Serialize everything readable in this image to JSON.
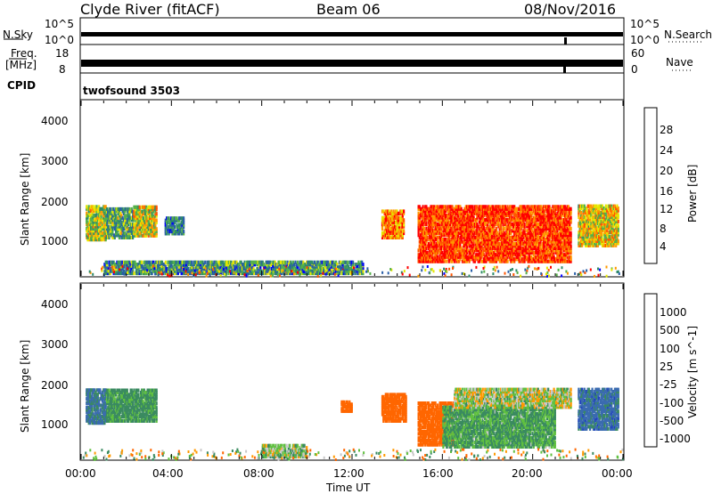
{
  "header": {
    "station": "Clyde River (fitACF)",
    "beam": "Beam 06",
    "date": "08/Nov/2016"
  },
  "status_panel": {
    "nsky_label": "N.Sky",
    "nsky_ticks": [
      "10^5",
      "10^0"
    ],
    "nsearch_label": "N.Search",
    "nsearch_ticks": [
      "10^5",
      "10^0"
    ],
    "freq_label_1": "Freq.",
    "freq_label_2": "[MHz]",
    "freq_ticks": [
      "18",
      "8"
    ],
    "nave_label": "Nave",
    "nave_ticks": [
      "60",
      "0"
    ],
    "cpid_label": "CPID",
    "cpid_value": "twofsound 3503"
  },
  "colors": {
    "power_scale": [
      "#0000ff",
      "#2a5fa8",
      "#2e8a6a",
      "#55b04a",
      "#e6e600",
      "#ff9900",
      "#ff5500",
      "#ff0000"
    ],
    "velocity_scale": [
      "#2040c0",
      "#3a6bb0",
      "#3a8a60",
      "#60c040",
      "#c8c8c8",
      "#ff9900",
      "#ff6600",
      "#ff3300",
      "#ff0000"
    ]
  },
  "chart_data": [
    {
      "type": "heatmap",
      "name": "power",
      "ylabel": "Slant Range [km]",
      "ylim": [
        180,
        4600
      ],
      "y_ticks": [
        "1000",
        "2000",
        "3000",
        "4000"
      ],
      "xlim_hours": [
        0,
        24
      ],
      "colorbar_label": "Power [dB]",
      "colorbar_ticks": [
        "4",
        "8",
        "12",
        "16",
        "20",
        "24",
        "28"
      ],
      "colorbar_range": [
        0,
        30
      ],
      "regions": [
        {
          "t0": 0.2,
          "t1": 1.1,
          "r0": 1050,
          "r1": 1900,
          "power": 16
        },
        {
          "t0": 1.1,
          "t1": 2.3,
          "r0": 1100,
          "r1": 1850,
          "power": 12
        },
        {
          "t0": 2.3,
          "t1": 3.3,
          "r0": 1150,
          "r1": 1900,
          "power": 17
        },
        {
          "t0": 3.7,
          "t1": 4.5,
          "r0": 1200,
          "r1": 1600,
          "power": 8
        },
        {
          "t0": 13.3,
          "t1": 14.3,
          "r0": 1100,
          "r1": 1800,
          "power": 22
        },
        {
          "t0": 14.9,
          "t1": 21.7,
          "r0": 500,
          "r1": 1900,
          "power": 26
        },
        {
          "t0": 22.0,
          "t1": 23.8,
          "r0": 900,
          "r1": 1900,
          "power": 18
        },
        {
          "t0": 1.0,
          "t1": 12.5,
          "r0": 200,
          "r1": 500,
          "power": 10
        }
      ]
    },
    {
      "type": "heatmap",
      "name": "velocity",
      "ylabel": "Slant Range [km]",
      "ylim": [
        180,
        4600
      ],
      "y_ticks": [
        "1000",
        "2000",
        "3000",
        "4000"
      ],
      "xlim_hours": [
        0,
        24
      ],
      "colorbar_label": "Velocity [m s^-1]",
      "colorbar_ticks": [
        "1000",
        "500",
        "100",
        "25",
        "-25",
        "-100",
        "-500",
        "-1000"
      ],
      "regions": [
        {
          "t0": 0.2,
          "t1": 1.1,
          "r0": 1050,
          "r1": 1900,
          "velocity": 600
        },
        {
          "t0": 1.1,
          "t1": 3.3,
          "r0": 1100,
          "r1": 1900,
          "velocity": 150
        },
        {
          "t0": 8.0,
          "t1": 10.0,
          "r0": 200,
          "r1": 500,
          "velocity": 50
        },
        {
          "t0": 11.5,
          "t1": 12.0,
          "r0": 1350,
          "r1": 1600,
          "velocity": -200
        },
        {
          "t0": 13.3,
          "t1": 14.4,
          "r0": 1100,
          "r1": 1800,
          "velocity": -300
        },
        {
          "t0": 14.9,
          "t1": 16.5,
          "r0": 500,
          "r1": 1600,
          "velocity": -300
        },
        {
          "t0": 16.0,
          "t1": 21.0,
          "r0": 450,
          "r1": 1450,
          "velocity": 120
        },
        {
          "t0": 16.5,
          "t1": 21.7,
          "r0": 1450,
          "r1": 1900,
          "velocity": 20
        },
        {
          "t0": 22.0,
          "t1": 23.8,
          "r0": 900,
          "r1": 1900,
          "velocity": 700
        }
      ]
    }
  ],
  "x_ticks": [
    "00:00",
    "04:00",
    "08:00",
    "12:00",
    "16:00",
    "20:00",
    "00:00"
  ],
  "x_label": "Time UT"
}
